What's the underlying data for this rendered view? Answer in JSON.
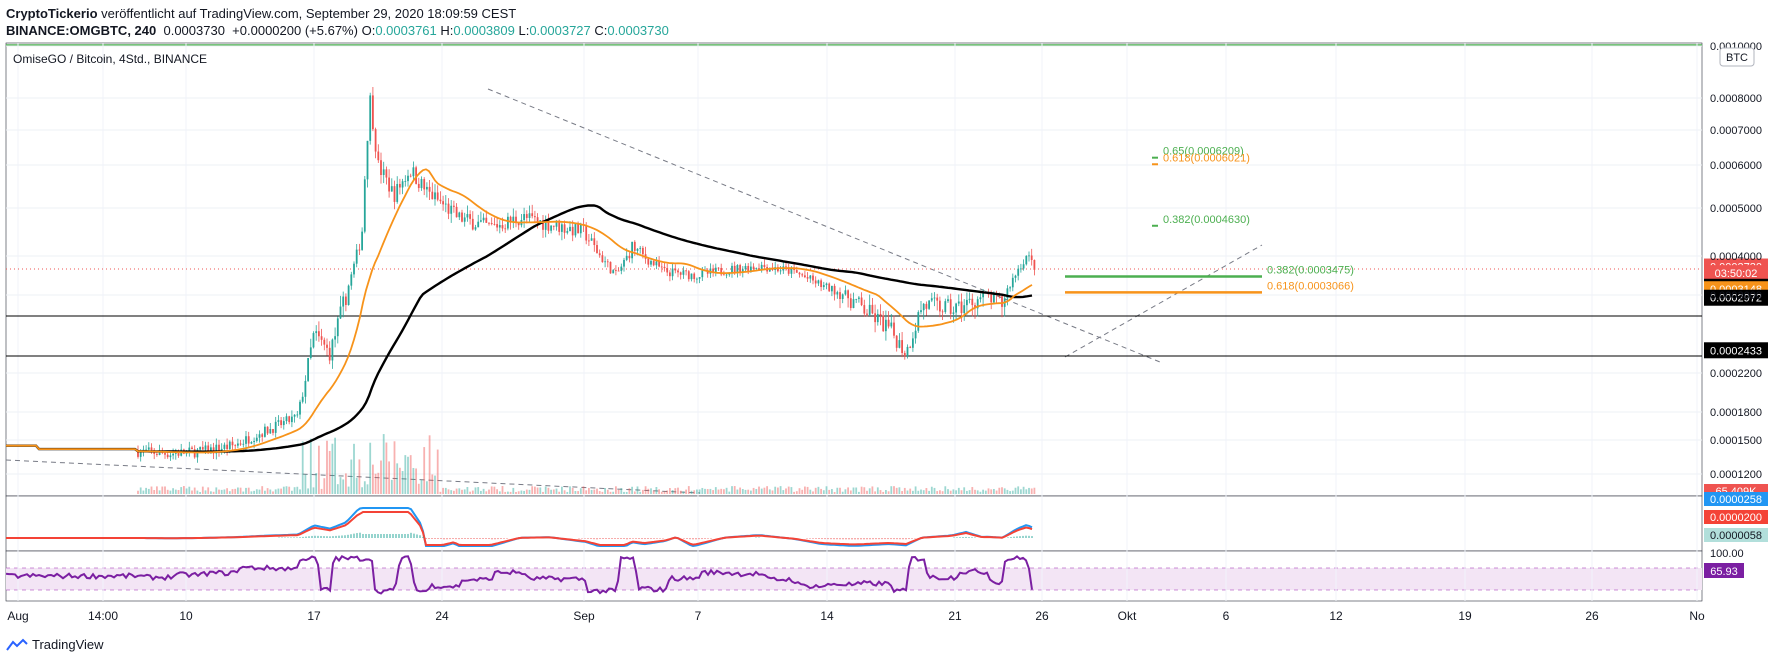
{
  "header": {
    "publisher": "CryptoTickerio",
    "published_text": "veröffentlicht auf TradingView.com, September 29, 2020 18:09:59 CEST",
    "symbol": "BINANCE:OMGBTC, 240",
    "last": "0.0003730",
    "change": "+0.0000200 (+5.67%)",
    "o_label": "O:",
    "o_value": "0.0003761",
    "h_label": "H:",
    "h_value": "0.0003809",
    "l_label": "L:",
    "l_value": "0.0003727",
    "c_label": "C:",
    "c_value": "0.0003730"
  },
  "chart_title": "OmiseGO / Bitcoin, 4Std., BINANCE",
  "currency_badge": "BTC",
  "footer_brand": "TradingView",
  "colors": {
    "up": "#26a69a",
    "down": "#ef5350",
    "ma_fast": "#f7931a",
    "ma_slow": "#000000",
    "fib": "#4caf50",
    "fib_gold": "#f7931a",
    "macd": "#2196f3",
    "signal": "#f44336",
    "rsi": "#7b1fa2"
  },
  "chart_data": {
    "type": "line",
    "price_axis_ticks": [
      "0.0010000",
      "0.0008000",
      "0.0007000",
      "0.0006000",
      "0.0005000",
      "0.0004000",
      "0.0003000",
      "0.0002200",
      "0.0001800",
      "0.0001500",
      "0.0001200"
    ],
    "price_axis_ticks_values": [
      0.001,
      0.0008,
      0.0007,
      0.0006,
      0.0005,
      0.0004,
      0.0003,
      0.00022,
      0.00018,
      0.00015,
      0.00012
    ],
    "x_tick_labels": [
      "Aug",
      "14:00",
      "10",
      "17",
      "24",
      "Sep",
      "7",
      "14",
      "21",
      "26",
      "Okt",
      "6",
      "12",
      "19",
      "26",
      "No"
    ],
    "price_close_path": [
      {
        "x": "Aug 6",
        "y": 0.00014
      },
      {
        "x": "Aug 8",
        "y": 0.000138
      },
      {
        "x": "Aug 10",
        "y": 0.00014
      },
      {
        "x": "Aug 12",
        "y": 0.000145
      },
      {
        "x": "Aug 14",
        "y": 0.00016
      },
      {
        "x": "Aug 16",
        "y": 0.000175
      },
      {
        "x": "Aug 17",
        "y": 0.00026
      },
      {
        "x": "Aug 18",
        "y": 0.00024
      },
      {
        "x": "Aug 19",
        "y": 0.0003
      },
      {
        "x": "Aug 20",
        "y": 0.00045
      },
      {
        "x": "Aug 20.5",
        "y": 0.0008
      },
      {
        "x": "Aug 21",
        "y": 0.0006
      },
      {
        "x": "Aug 22",
        "y": 0.00053
      },
      {
        "x": "Aug 23",
        "y": 0.00059
      },
      {
        "x": "Aug 24",
        "y": 0.00054
      },
      {
        "x": "Aug 26",
        "y": 0.00048
      },
      {
        "x": "Aug 28",
        "y": 0.00046
      },
      {
        "x": "Aug 30",
        "y": 0.00048
      },
      {
        "x": "Sep 1",
        "y": 0.00045
      },
      {
        "x": "Sep 3",
        "y": 0.00035
      },
      {
        "x": "Sep 4",
        "y": 0.00042
      },
      {
        "x": "Sep 6",
        "y": 0.00036
      },
      {
        "x": "Sep 8",
        "y": 0.00035
      },
      {
        "x": "Sep 10",
        "y": 0.000365
      },
      {
        "x": "Sep 12",
        "y": 0.000375
      },
      {
        "x": "Sep 14",
        "y": 0.00036
      },
      {
        "x": "Sep 16",
        "y": 0.00032
      },
      {
        "x": "Sep 18",
        "y": 0.00029
      },
      {
        "x": "Sep 20",
        "y": 0.000265
      },
      {
        "x": "Sep 21",
        "y": 0.00024
      },
      {
        "x": "Sep 22",
        "y": 0.00029
      },
      {
        "x": "Sep 24",
        "y": 0.000285
      },
      {
        "x": "Sep 26",
        "y": 0.0003
      },
      {
        "x": "Sep 27",
        "y": 0.00029
      },
      {
        "x": "Sep 28",
        "y": 0.00037
      },
      {
        "x": "Sep 28.5",
        "y": 0.0004
      },
      {
        "x": "Sep 29",
        "y": 0.000373
      }
    ],
    "fib_levels": [
      {
        "label": "0.65(0.0006209)",
        "value": 0.0006209
      },
      {
        "label": "0.618(0.0006021)",
        "value": 0.0006021
      },
      {
        "label": "0.382(0.0004630)",
        "value": 0.000463
      },
      {
        "label": "0.382(0.0003475)",
        "value": 0.0003475
      },
      {
        "label": "0.618(0.0003066)",
        "value": 0.0003066
      }
    ],
    "price_labels": [
      {
        "text": "0.0003730",
        "value": 0.000373,
        "bg": "#ef5350"
      },
      {
        "text": "03:50:02",
        "value": 0.000356,
        "bg": "#ef5350"
      },
      {
        "text": "0.0003211",
        "value": 0.0003211,
        "bg": "#000000"
      },
      {
        "text": "0.0003148",
        "value": 0.0003148,
        "bg": "#f7931a"
      },
      {
        "text": "0.0002972",
        "value": 0.0002972,
        "bg": "#000000"
      },
      {
        "text": "0.0002433",
        "value": 0.0002433,
        "bg": "#000000"
      }
    ],
    "volume_label": "65.409K",
    "macd_labels": [
      "0.0000258",
      "0.0000200",
      "0.0000058"
    ],
    "rsi_labels": [
      "100.00",
      "65.93"
    ]
  }
}
